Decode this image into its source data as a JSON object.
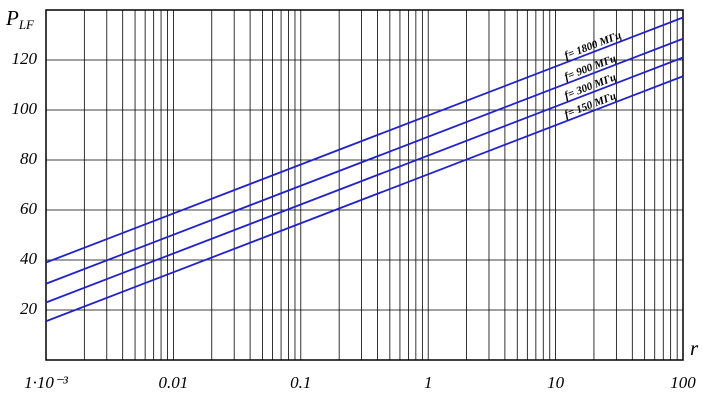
{
  "chart_data": {
    "type": "line",
    "y_label": {
      "main": "P",
      "sub": "LF"
    },
    "x_label": "r",
    "x_log": true,
    "minor_grid": true,
    "xlim": [
      0.001,
      100
    ],
    "xticks": [
      {
        "value": 0.001,
        "label": "1·10⁻³"
      },
      0.01,
      0.1,
      1,
      10,
      100
    ],
    "ylim": [
      0,
      140
    ],
    "yticks": [
      20,
      40,
      60,
      80,
      100,
      120
    ],
    "grid": true,
    "series": [
      {
        "name": "f= 1800 МГц",
        "color": "#2222c8",
        "x": [
          0.001,
          100
        ],
        "values": [
          39,
          137
        ]
      },
      {
        "name": "f= 900 МГц",
        "color": "#2222c8",
        "x": [
          0.001,
          100
        ],
        "values": [
          30.5,
          128.5
        ]
      },
      {
        "name": "f= 300 МГц",
        "color": "#2222c8",
        "x": [
          0.001,
          100
        ],
        "values": [
          23,
          121
        ]
      },
      {
        "name": "f= 150 МГц",
        "color": "#2222c8",
        "x": [
          0.001,
          100
        ],
        "values": [
          15.5,
          113.5
        ]
      }
    ]
  }
}
